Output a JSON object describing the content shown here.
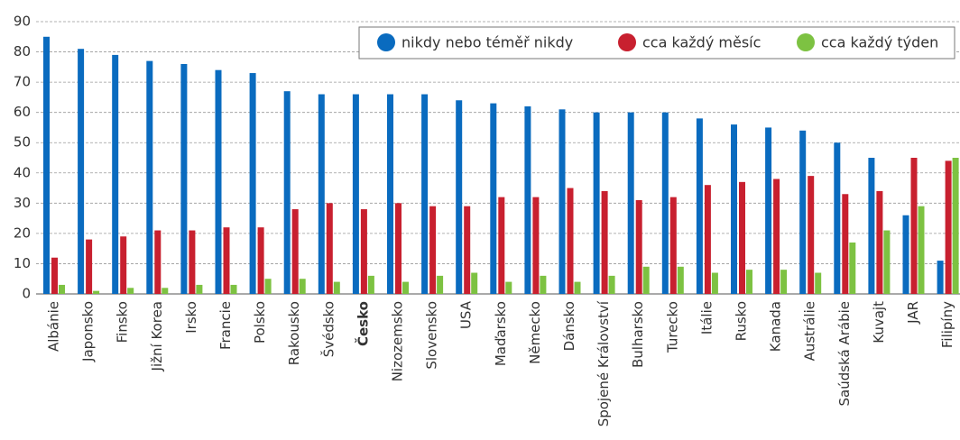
{
  "chart_data": {
    "type": "bar",
    "categories": [
      "Albánie",
      "Japonsko",
      "Finsko",
      "Jižní Korea",
      "Irsko",
      "Francie",
      "Polsko",
      "Rakousko",
      "Švédsko",
      "Česko",
      "Nizozemsko",
      "Slovensko",
      "USA",
      "Maďarsko",
      "Německo",
      "Dánsko",
      "Spojené Království",
      "Bulharsko",
      "Turecko",
      "Itálie",
      "Rusko",
      "Kanada",
      "Austrálie",
      "Saúdská Arábie",
      "Kuvajt",
      "JAR",
      "Filipíny"
    ],
    "highlight_category": "Česko",
    "series": [
      {
        "name": "nikdy nebo téměř nikdy",
        "color": "#0a6bbf",
        "values": [
          85,
          81,
          79,
          77,
          76,
          74,
          73,
          67,
          66,
          66,
          66,
          66,
          64,
          63,
          62,
          61,
          60,
          60,
          60,
          58,
          56,
          55,
          54,
          50,
          45,
          26,
          11
        ]
      },
      {
        "name": "cca každý měsíc",
        "color": "#c8202f",
        "values": [
          12,
          18,
          19,
          21,
          21,
          22,
          22,
          28,
          30,
          28,
          30,
          29,
          29,
          32,
          32,
          35,
          34,
          31,
          32,
          36,
          37,
          38,
          39,
          33,
          34,
          45,
          44
        ]
      },
      {
        "name": "cca každý týden",
        "color": "#7dc242",
        "values": [
          3,
          1,
          2,
          2,
          3,
          3,
          5,
          5,
          4,
          6,
          4,
          6,
          7,
          4,
          6,
          4,
          6,
          9,
          9,
          7,
          8,
          8,
          7,
          17,
          21,
          29,
          45
        ]
      }
    ],
    "ylim": [
      0,
      90
    ],
    "yticks": [
      0,
      10,
      20,
      30,
      40,
      50,
      60,
      70,
      80,
      90
    ],
    "grid": true,
    "legend": "top-right"
  }
}
